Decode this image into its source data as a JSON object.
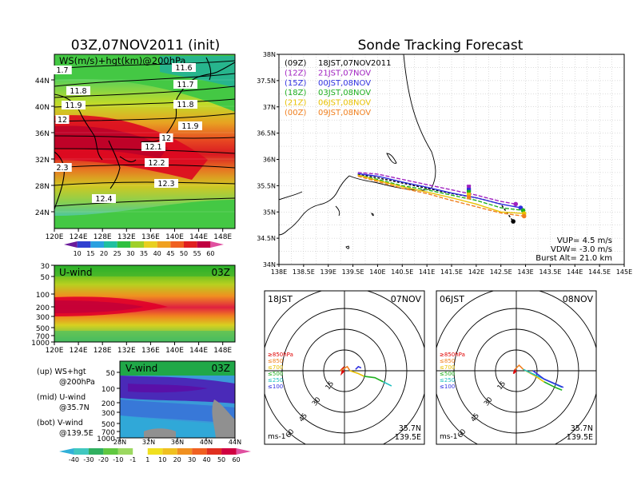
{
  "left_title": "03Z,07NOV2011 (init)",
  "right_title": "Sonde Tracking Forecast",
  "map_panel": {
    "label": "WS(m/s)+hgt(km)@200hPa",
    "lat_labels": [
      "44N",
      "40N",
      "36N",
      "32N",
      "28N",
      "24N"
    ],
    "lon_labels": [
      "120E",
      "124E",
      "128E",
      "132E",
      "136E",
      "140E",
      "144E",
      "148E"
    ],
    "contour_labels": [
      "1.7",
      "11.6",
      "11.7",
      "11.8",
      "11.8",
      "11.9",
      "11.9",
      "12",
      "12",
      "12.1",
      "12.2",
      "2.3",
      "12.3",
      "12.4"
    ]
  },
  "ws_colorbar": {
    "ticks": [
      "10",
      "15",
      "20",
      "25",
      "30",
      "35",
      "40",
      "45",
      "50",
      "55",
      "60"
    ]
  },
  "u_panel": {
    "label": "U-wind",
    "time": "03Z",
    "p_ticks": [
      "30",
      "50",
      "100",
      "200",
      "300",
      "500",
      "700",
      "1000"
    ],
    "x_labels": [
      "120E",
      "124E",
      "128E",
      "132E",
      "136E",
      "140E",
      "144E",
      "148E"
    ]
  },
  "v_panel": {
    "label": "V-wind",
    "time": "03Z",
    "p_ticks": [
      "50",
      "100",
      "200",
      "300",
      "500",
      "700",
      "1000"
    ],
    "x_labels": [
      "28N",
      "32N",
      "36N",
      "40N",
      "44N"
    ]
  },
  "panel_notes": [
    {
      "l1": "(up) WS+hgt",
      "l2": "@200hPa"
    },
    {
      "l1": "(mid) U-wind",
      "l2": "@35.7N"
    },
    {
      "l1": "(bot) V-wind",
      "l2": "@139.5E"
    }
  ],
  "wind_colorbar": {
    "ticks": [
      "-40",
      "-30",
      "-20",
      "-10",
      "-1",
      "1",
      "10",
      "20",
      "30",
      "40",
      "50",
      "60"
    ]
  },
  "tracking": {
    "lat_labels": [
      "38N",
      "37.5N",
      "37N",
      "36.5N",
      "36N",
      "35.5N",
      "35N",
      "34.5N",
      "34N"
    ],
    "lon_labels": [
      "138E",
      "138.5E",
      "139E",
      "139.5E",
      "140E",
      "140.5E",
      "141E",
      "141.5E",
      "142E",
      "142.5E",
      "143E",
      "143.5E",
      "144E",
      "144.5E",
      "145E"
    ],
    "legend": [
      {
        "code": "(09Z)",
        "text": "18JST,07NOV2011",
        "color": "#000000"
      },
      {
        "code": "(12Z)",
        "text": "21JST,07NOV",
        "color": "#a020c0"
      },
      {
        "code": "(15Z)",
        "text": "00JST,08NOV",
        "color": "#3030e0"
      },
      {
        "code": "(18Z)",
        "text": "03JST,08NOV",
        "color": "#20b020"
      },
      {
        "code": "(21Z)",
        "text": "06JST,08NOV",
        "color": "#e8c000"
      },
      {
        "code": "(00Z)",
        "text": "09JST,08NOV",
        "color": "#f08020"
      }
    ],
    "info": [
      "VUP= 4.5 m/s",
      "VDW= -3.0 m/s",
      "Burst Alt= 21.0 km"
    ]
  },
  "hodo_left": {
    "time": "18JST",
    "date": "07NOV",
    "ring_labels": [
      "15",
      "30",
      "45",
      "60"
    ],
    "unit": "ms-1",
    "loc1": "35.7N",
    "loc2": "139.5E",
    "levels": [
      {
        "t": "≥850hPa",
        "c": "#e00000"
      },
      {
        "t": "≤850",
        "c": "#f08020"
      },
      {
        "t": "≤700",
        "c": "#e8c000"
      },
      {
        "t": "≤500",
        "c": "#20b020"
      },
      {
        "t": "≤250",
        "c": "#20c0c0"
      },
      {
        "t": "≤100",
        "c": "#3030e0"
      }
    ]
  },
  "hodo_right": {
    "time": "06JST",
    "date": "08NOV",
    "ring_labels": [
      "15",
      "30",
      "45",
      "60"
    ],
    "unit": "ms-1",
    "loc1": "35.7N",
    "loc2": "139.5E",
    "levels": [
      {
        "t": "≥850hPa",
        "c": "#e00000"
      },
      {
        "t": "≤850",
        "c": "#f08020"
      },
      {
        "t": "≤700",
        "c": "#e8c000"
      },
      {
        "t": "≤500",
        "c": "#20b020"
      },
      {
        "t": "≤250",
        "c": "#20c0c0"
      },
      {
        "t": "≤100",
        "c": "#3030e0"
      }
    ]
  },
  "chart_data": [
    {
      "type": "heatmap",
      "title": "03Z,07NOV2011 (init)",
      "subtitle": "WS(m/s)+hgt(km)@200hPa",
      "xlim": [
        120,
        150
      ],
      "ylim": [
        22,
        48
      ],
      "jet_axis_lat_at_lon": {
        "120": 34,
        "128": 33,
        "136": 32,
        "140": 34,
        "148": 36
      },
      "max_speed_ms": 60,
      "height_contours_km": [
        11.6,
        11.7,
        11.8,
        11.9,
        12.0,
        12.1,
        12.2,
        12.3,
        12.4
      ]
    },
    {
      "type": "heatmap",
      "title": "U-wind",
      "xlabel": "",
      "ylabel": "",
      "x_range": [
        120,
        150
      ],
      "p_range_hPa": [
        30,
        1000
      ],
      "max_u_ms": 60,
      "max_center": {
        "lon": 125,
        "p": 200
      }
    },
    {
      "type": "heatmap",
      "title": "V-wind",
      "x_range": [
        28,
        44
      ],
      "p_range_hPa": [
        30,
        1000
      ]
    },
    {
      "type": "line",
      "title": "Sonde Tracking Forecast",
      "xlim": [
        138,
        145
      ],
      "ylim": [
        34,
        38
      ],
      "series": [
        {
          "name": "(09Z) 18JST,07NOV2011",
          "x": [
            139.6,
            140.0,
            140.5,
            141.0,
            141.5,
            142.0,
            142.5,
            142.75
          ],
          "y": [
            35.72,
            35.65,
            35.55,
            35.45,
            35.35,
            35.27,
            35.15,
            34.82
          ]
        },
        {
          "name": "(12Z) 21JST,07NOV",
          "x": [
            139.6,
            140.0,
            140.5,
            141.0,
            141.5,
            142.0,
            142.5,
            142.8
          ],
          "y": [
            35.75,
            35.72,
            35.62,
            35.52,
            35.42,
            35.32,
            35.2,
            35.15
          ]
        },
        {
          "name": "(15Z) 00JST,08NOV",
          "x": [
            139.6,
            140.0,
            140.5,
            141.0,
            141.5,
            142.0,
            142.5,
            142.9
          ],
          "y": [
            35.73,
            35.68,
            35.57,
            35.47,
            35.36,
            35.27,
            35.15,
            35.08
          ]
        },
        {
          "name": "(18Z) 03JST,08NOV",
          "x": [
            139.6,
            140.0,
            140.5,
            141.0,
            141.5,
            142.0,
            142.5,
            142.95
          ],
          "y": [
            35.7,
            35.62,
            35.5,
            35.42,
            35.32,
            35.22,
            35.08,
            35.03
          ]
        },
        {
          "name": "(21Z) 06JST,08NOV",
          "x": [
            139.6,
            140.0,
            140.5,
            141.0,
            141.5,
            142.0,
            142.5,
            142.97
          ],
          "y": [
            35.7,
            35.6,
            35.48,
            35.38,
            35.27,
            35.15,
            35.0,
            34.97
          ]
        },
        {
          "name": "(00Z) 09JST,08NOV",
          "x": [
            139.6,
            140.0,
            140.5,
            141.0,
            141.5,
            142.0,
            142.5,
            142.97
          ],
          "y": [
            35.68,
            35.58,
            35.45,
            35.35,
            35.22,
            35.1,
            34.98,
            34.92
          ]
        }
      ]
    },
    {
      "type": "line",
      "title": "18JST 07NOV hodograph",
      "xlabel": "u (ms-1)",
      "ylabel": "v (ms-1)",
      "series": [
        {
          "name": "≥850hPa",
          "x": [
            0,
            -2,
            -1,
            -3
          ],
          "y": [
            0,
            -2,
            2,
            0
          ]
        },
        {
          "name": "≤850",
          "x": [
            -3,
            2,
            4
          ],
          "y": [
            0,
            3,
            0
          ]
        },
        {
          "name": "≤700",
          "x": [
            4,
            10,
            14
          ],
          "y": [
            0,
            -2,
            -4
          ]
        },
        {
          "name": "≤500",
          "x": [
            14,
            22,
            28
          ],
          "y": [
            -4,
            -5,
            -8
          ]
        },
        {
          "name": "≤250",
          "x": [
            28,
            32,
            34
          ],
          "y": [
            -8,
            -10,
            -11
          ]
        },
        {
          "name": "≤100",
          "x": [
            8,
            10,
            12
          ],
          "y": [
            1,
            3,
            2
          ]
        }
      ]
    },
    {
      "type": "line",
      "title": "06JST 08NOV hodograph",
      "xlabel": "u (ms-1)",
      "ylabel": "v (ms-1)",
      "series": [
        {
          "name": "≥850hPa",
          "x": [
            0,
            -2,
            -1
          ],
          "y": [
            0,
            -2,
            1
          ]
        },
        {
          "name": "≤850",
          "x": [
            -1,
            2,
            5
          ],
          "y": [
            1,
            4,
            1
          ]
        },
        {
          "name": "≤700",
          "x": [
            5,
            14,
            20
          ],
          "y": [
            1,
            -4,
            -8
          ]
        },
        {
          "name": "≤500",
          "x": [
            20,
            28,
            33
          ],
          "y": [
            -8,
            -12,
            -14
          ]
        },
        {
          "name": "≤250",
          "x": [
            5,
            20,
            33
          ],
          "y": [
            1,
            -6,
            -12
          ]
        },
        {
          "name": "≤100",
          "x": [
            12,
            20,
            34
          ],
          "y": [
            0,
            -6,
            -12
          ]
        }
      ]
    }
  ]
}
